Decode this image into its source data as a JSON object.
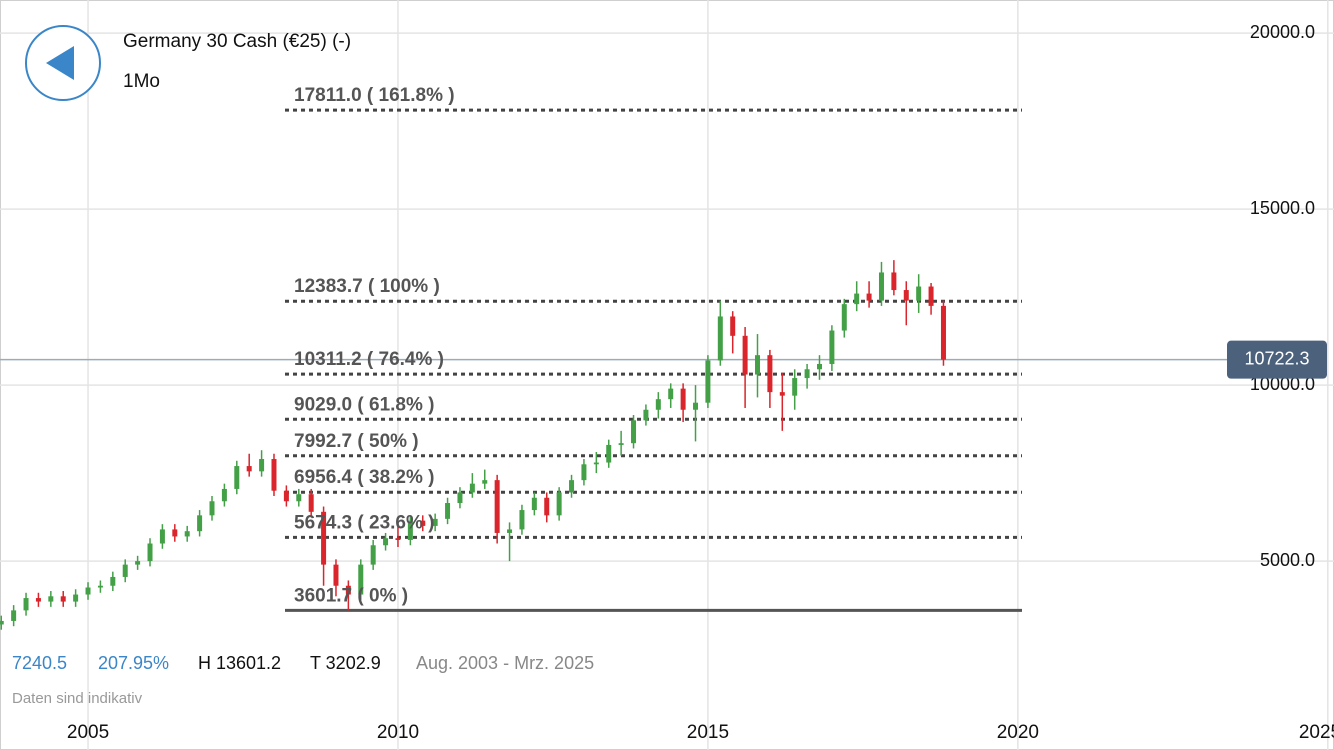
{
  "chart_data": {
    "type": "candlestick",
    "title": "Germany 30 Cash (€25) (-)",
    "subtitle": "1Mo",
    "stats": [
      "7240.5",
      "207.95%",
      "H 13601.2",
      "T 3202.9"
    ],
    "date_range": "Aug. 2003 - Mrz. 2025",
    "note": "Daten sind indikativ",
    "up_color": "#43a047",
    "down_color": "#d9252b",
    "grid": true,
    "xlim": [
      2003.58,
      2025.1
    ],
    "xticks": [
      2005,
      2010,
      2015,
      2020,
      2025
    ],
    "ylim": [
      770,
      20940
    ],
    "yticks": [
      {
        "value": 5000,
        "label": "5000.0"
      },
      {
        "value": 10000,
        "label": "10000.0"
      },
      {
        "value": 15000,
        "label": "15000.0"
      },
      {
        "value": 20000,
        "label": "20000.0"
      }
    ],
    "last_price": 10722.3,
    "fib_levels": [
      {
        "value": 17811.0,
        "label": "17811.0 ( 161.8% )"
      },
      {
        "value": 12383.7,
        "label": "12383.7 ( 100% )"
      },
      {
        "value": 10311.2,
        "label": "10311.2 ( 76.4% )"
      },
      {
        "value": 9029.0,
        "label": "9029.0 ( 61.8% )"
      },
      {
        "value": 7992.7,
        "label": "7992.7 ( 50% )"
      },
      {
        "value": 6956.4,
        "label": "6956.4 ( 38.2% )"
      },
      {
        "value": 5674.3,
        "label": "5674.3 ( 23.6% )"
      },
      {
        "value": 3601.7,
        "label": "3601.7 ( 0% )"
      }
    ],
    "x": [
      2003.6,
      2003.8,
      2004.0,
      2004.2,
      2004.4,
      2004.6,
      2004.8,
      2005.0,
      2005.2,
      2005.4,
      2005.6,
      2005.8,
      2006.0,
      2006.2,
      2006.4,
      2006.6,
      2006.8,
      2007.0,
      2007.2,
      2007.4,
      2007.6,
      2007.8,
      2008.0,
      2008.2,
      2008.4,
      2008.6,
      2008.8,
      2009.0,
      2009.2,
      2009.4,
      2009.6,
      2009.8,
      2010.0,
      2010.2,
      2010.4,
      2010.6,
      2010.8,
      2011.0,
      2011.2,
      2011.4,
      2011.6,
      2011.8,
      2012.0,
      2012.2,
      2012.4,
      2012.6,
      2012.8,
      2013.0,
      2013.2,
      2013.4,
      2013.6,
      2013.8,
      2014.0,
      2014.2,
      2014.4,
      2014.6,
      2014.8,
      2015.0,
      2015.2,
      2015.4,
      2015.6,
      2015.8,
      2016.0,
      2016.2,
      2016.4,
      2016.6,
      2016.8,
      2017.0,
      2017.2,
      2017.4,
      2017.6,
      2017.8,
      2018.0,
      2018.2,
      2018.4,
      2018.6,
      2018.8
    ],
    "open": [
      3200,
      3300,
      3600,
      3950,
      3850,
      4000,
      3850,
      4050,
      4250,
      4300,
      4550,
      4900,
      5000,
      5500,
      5900,
      5700,
      5850,
      6300,
      6700,
      7050,
      7700,
      7550,
      7900,
      7000,
      6700,
      6900,
      6400,
      4900,
      4300,
      4050,
      4900,
      5450,
      5650,
      5600,
      6150,
      6000,
      6200,
      6650,
      6950,
      7200,
      7300,
      5800,
      5900,
      6450,
      6800,
      6300,
      6950,
      7300,
      7750,
      7800,
      8300,
      8350,
      9000,
      9300,
      9600,
      9900,
      9300,
      9500,
      10700,
      11950,
      11400,
      10300,
      10850,
      9800,
      9700,
      10200,
      10450,
      10600,
      11550,
      12300,
      12600,
      12400,
      13200,
      12700,
      12400,
      12800,
      12250
    ],
    "high": [
      3450,
      3750,
      4100,
      4100,
      4150,
      4150,
      4200,
      4400,
      4450,
      4700,
      5050,
      5150,
      5650,
      6050,
      6050,
      6000,
      6450,
      6850,
      7200,
      7850,
      8050,
      8150,
      8050,
      7150,
      7050,
      7050,
      6550,
      5050,
      4450,
      5050,
      5600,
      5800,
      6000,
      6300,
      6300,
      6350,
      6800,
      7100,
      7500,
      7600,
      7450,
      6100,
      6600,
      6950,
      6950,
      7100,
      7450,
      7900,
      8100,
      8450,
      8700,
      9150,
      9450,
      9800,
      10050,
      10050,
      10000,
      10850,
      12400,
      12100,
      11650,
      11450,
      11000,
      10350,
      10450,
      10600,
      10850,
      11700,
      12450,
      12950,
      12950,
      13500,
      13550,
      12950,
      13150,
      12900,
      12400
    ],
    "low": [
      3050,
      3150,
      3450,
      3700,
      3700,
      3700,
      3700,
      3900,
      4100,
      4150,
      4400,
      4750,
      4850,
      5350,
      5550,
      5550,
      5700,
      6150,
      6550,
      6900,
      7400,
      7400,
      6850,
      6550,
      6550,
      6250,
      4300,
      4000,
      3600,
      3900,
      4750,
      5300,
      5400,
      5450,
      5850,
      5850,
      6050,
      6500,
      6800,
      7050,
      5500,
      5000,
      5750,
      6300,
      6100,
      6150,
      6800,
      7150,
      7500,
      7650,
      8000,
      8200,
      8850,
      9050,
      9350,
      8950,
      8400,
      9350,
      10550,
      10900,
      9350,
      9650,
      9350,
      8700,
      9300,
      9900,
      10150,
      10400,
      11350,
      12100,
      12200,
      12250,
      12550,
      11700,
      12050,
      12000,
      10550
    ],
    "close": [
      3300,
      3600,
      3950,
      3850,
      4000,
      3850,
      4050,
      4250,
      4300,
      4550,
      4900,
      5000,
      5500,
      5900,
      5700,
      5850,
      6300,
      6700,
      7050,
      7700,
      7550,
      7900,
      7000,
      6700,
      6900,
      6400,
      4900,
      4300,
      4050,
      4900,
      5450,
      5650,
      5600,
      6150,
      6000,
      6200,
      6650,
      6950,
      7200,
      7300,
      5800,
      5900,
      6450,
      6800,
      6300,
      6950,
      7300,
      7750,
      7800,
      8300,
      8350,
      9000,
      9300,
      9600,
      9900,
      9300,
      9500,
      10700,
      11950,
      11400,
      10300,
      10850,
      9800,
      9700,
      10200,
      10450,
      10600,
      11550,
      12300,
      12600,
      12400,
      13200,
      12700,
      12400,
      12800,
      12250,
      10722.3
    ]
  }
}
